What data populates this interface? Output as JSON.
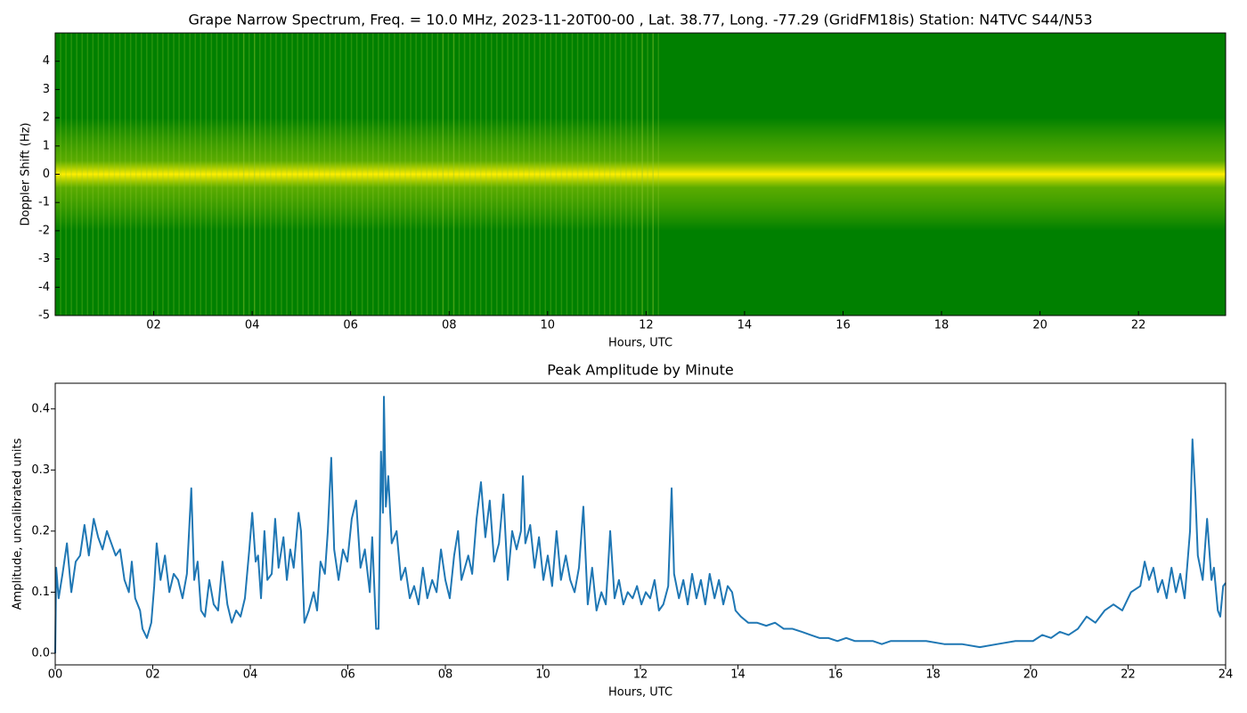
{
  "chart_data": [
    {
      "type": "spectrogram",
      "title": "Grape Narrow Spectrum, Freq. = 10.0 MHz, 2023-11-20T00-00 , Lat.  38.77, Long. -77.29 (GridFM18is) Station: N4TVC S44/N53",
      "xlabel": "Hours, UTC",
      "ylabel": "Doppler Shift (Hz)",
      "xlim": [
        0,
        23.77
      ],
      "ylim": [
        -5,
        5
      ],
      "xticks": [
        {
          "value": 2,
          "label": "02"
        },
        {
          "value": 4,
          "label": "04"
        },
        {
          "value": 6,
          "label": "06"
        },
        {
          "value": 8,
          "label": "08"
        },
        10,
        12,
        14,
        16,
        18,
        20,
        22
      ],
      "yticks": [
        -5,
        -4,
        -3,
        -2,
        -1,
        0,
        1,
        2,
        3,
        4
      ],
      "color": "#008000"
    },
    {
      "type": "line",
      "title": "Peak Amplitude by Minute",
      "xlabel": "Hours, UTC",
      "ylabel": "Amplitude, uncalibrated units",
      "xlim": [
        0,
        24
      ],
      "ylim": [
        -0.019,
        0.442
      ],
      "xticks": [
        {
          "value": 0,
          "label": "00"
        },
        {
          "value": 2,
          "label": "02"
        },
        {
          "value": 4,
          "label": "04"
        },
        {
          "value": 6,
          "label": "06"
        },
        {
          "value": 8,
          "label": "08"
        },
        10,
        12,
        14,
        16,
        18,
        20,
        22,
        24
      ],
      "yticks": [
        {
          "value": 0,
          "label": "0.0"
        },
        0.1,
        0.2,
        0.3,
        0.4
      ],
      "color": "#1f77b4",
      "x": [
        0,
        0.02,
        0.07,
        0.15,
        0.24,
        0.33,
        0.42,
        0.51,
        0.6,
        0.69,
        0.79,
        0.88,
        0.97,
        1.06,
        1.15,
        1.24,
        1.33,
        1.42,
        1.51,
        1.57,
        1.64,
        1.74,
        1.79,
        1.88,
        1.97,
        2.03,
        2.08,
        2.16,
        2.25,
        2.34,
        2.43,
        2.52,
        2.61,
        2.7,
        2.79,
        2.85,
        2.92,
        2.99,
        3.07,
        3.16,
        3.25,
        3.34,
        3.43,
        3.53,
        3.62,
        3.71,
        3.8,
        3.89,
        3.98,
        4.04,
        4.11,
        4.16,
        4.22,
        4.29,
        4.35,
        4.44,
        4.51,
        4.58,
        4.68,
        4.75,
        4.82,
        4.89,
        4.99,
        5.04,
        5.11,
        5.2,
        5.3,
        5.37,
        5.44,
        5.53,
        5.59,
        5.66,
        5.72,
        5.81,
        5.9,
        5.99,
        6.08,
        6.17,
        6.26,
        6.35,
        6.45,
        6.5,
        6.58,
        6.63,
        6.68,
        6.72,
        6.74,
        6.78,
        6.83,
        6.9,
        7.0,
        7.09,
        7.18,
        7.27,
        7.36,
        7.45,
        7.54,
        7.63,
        7.73,
        7.82,
        7.91,
        8.0,
        8.09,
        8.18,
        8.26,
        8.33,
        8.4,
        8.47,
        8.55,
        8.64,
        8.73,
        8.82,
        8.91,
        9.0,
        9.1,
        9.19,
        9.28,
        9.37,
        9.46,
        9.55,
        9.59,
        9.64,
        9.74,
        9.83,
        9.92,
        10.01,
        10.1,
        10.19,
        10.28,
        10.37,
        10.47,
        10.56,
        10.65,
        10.74,
        10.83,
        10.92,
        11.01,
        11.1,
        11.2,
        11.29,
        11.38,
        11.47,
        11.56,
        11.65,
        11.74,
        11.84,
        11.93,
        12.02,
        12.11,
        12.2,
        12.29,
        12.38,
        12.47,
        12.57,
        12.64,
        12.69,
        12.79,
        12.88,
        12.97,
        13.06,
        13.15,
        13.24,
        13.33,
        13.42,
        13.52,
        13.61,
        13.7,
        13.79,
        13.88,
        13.95,
        14.06,
        14.21,
        14.39,
        14.58,
        14.76,
        14.94,
        15.12,
        15.31,
        15.49,
        15.67,
        15.85,
        16.04,
        16.22,
        16.4,
        16.58,
        16.77,
        16.95,
        17.13,
        17.5,
        17.86,
        18.23,
        18.59,
        18.96,
        19.32,
        19.69,
        20.05,
        20.24,
        20.42,
        20.6,
        20.78,
        20.97,
        21.15,
        21.33,
        21.52,
        21.7,
        21.88,
        22.06,
        22.25,
        22.34,
        22.43,
        22.52,
        22.61,
        22.7,
        22.79,
        22.89,
        22.98,
        23.07,
        23.16,
        23.27,
        23.32,
        23.38,
        23.43,
        23.53,
        23.62,
        23.71,
        23.76,
        23.84,
        23.89,
        23.95,
        24.0
      ],
      "values": [
        0.0,
        0.14,
        0.09,
        0.13,
        0.18,
        0.1,
        0.15,
        0.16,
        0.21,
        0.16,
        0.22,
        0.19,
        0.17,
        0.2,
        0.18,
        0.16,
        0.17,
        0.12,
        0.1,
        0.15,
        0.09,
        0.07,
        0.04,
        0.025,
        0.05,
        0.11,
        0.18,
        0.12,
        0.16,
        0.1,
        0.13,
        0.12,
        0.09,
        0.13,
        0.27,
        0.12,
        0.15,
        0.07,
        0.06,
        0.12,
        0.08,
        0.07,
        0.15,
        0.08,
        0.05,
        0.07,
        0.06,
        0.09,
        0.17,
        0.23,
        0.15,
        0.16,
        0.09,
        0.2,
        0.12,
        0.13,
        0.22,
        0.14,
        0.19,
        0.12,
        0.17,
        0.14,
        0.23,
        0.2,
        0.05,
        0.07,
        0.1,
        0.07,
        0.15,
        0.13,
        0.2,
        0.32,
        0.17,
        0.12,
        0.17,
        0.15,
        0.22,
        0.25,
        0.14,
        0.17,
        0.1,
        0.19,
        0.04,
        0.04,
        0.33,
        0.23,
        0.42,
        0.24,
        0.29,
        0.18,
        0.2,
        0.12,
        0.14,
        0.09,
        0.11,
        0.08,
        0.14,
        0.09,
        0.12,
        0.1,
        0.17,
        0.12,
        0.09,
        0.16,
        0.2,
        0.12,
        0.14,
        0.16,
        0.13,
        0.22,
        0.28,
        0.19,
        0.25,
        0.15,
        0.18,
        0.26,
        0.12,
        0.2,
        0.17,
        0.2,
        0.29,
        0.18,
        0.21,
        0.14,
        0.19,
        0.12,
        0.16,
        0.11,
        0.2,
        0.12,
        0.16,
        0.12,
        0.1,
        0.14,
        0.24,
        0.08,
        0.14,
        0.07,
        0.1,
        0.08,
        0.2,
        0.09,
        0.12,
        0.08,
        0.1,
        0.09,
        0.11,
        0.08,
        0.1,
        0.09,
        0.12,
        0.07,
        0.08,
        0.11,
        0.27,
        0.13,
        0.09,
        0.12,
        0.08,
        0.13,
        0.09,
        0.12,
        0.08,
        0.13,
        0.09,
        0.12,
        0.08,
        0.11,
        0.1,
        0.07,
        0.06,
        0.05,
        0.05,
        0.045,
        0.05,
        0.04,
        0.04,
        0.035,
        0.03,
        0.025,
        0.025,
        0.02,
        0.025,
        0.02,
        0.02,
        0.02,
        0.015,
        0.02,
        0.02,
        0.02,
        0.015,
        0.015,
        0.01,
        0.015,
        0.02,
        0.02,
        0.03,
        0.025,
        0.035,
        0.03,
        0.04,
        0.06,
        0.05,
        0.07,
        0.08,
        0.07,
        0.1,
        0.11,
        0.15,
        0.12,
        0.14,
        0.1,
        0.12,
        0.09,
        0.14,
        0.1,
        0.13,
        0.09,
        0.2,
        0.35,
        0.26,
        0.16,
        0.12,
        0.22,
        0.12,
        0.14,
        0.07,
        0.06,
        0.11,
        0.115
      ]
    }
  ]
}
